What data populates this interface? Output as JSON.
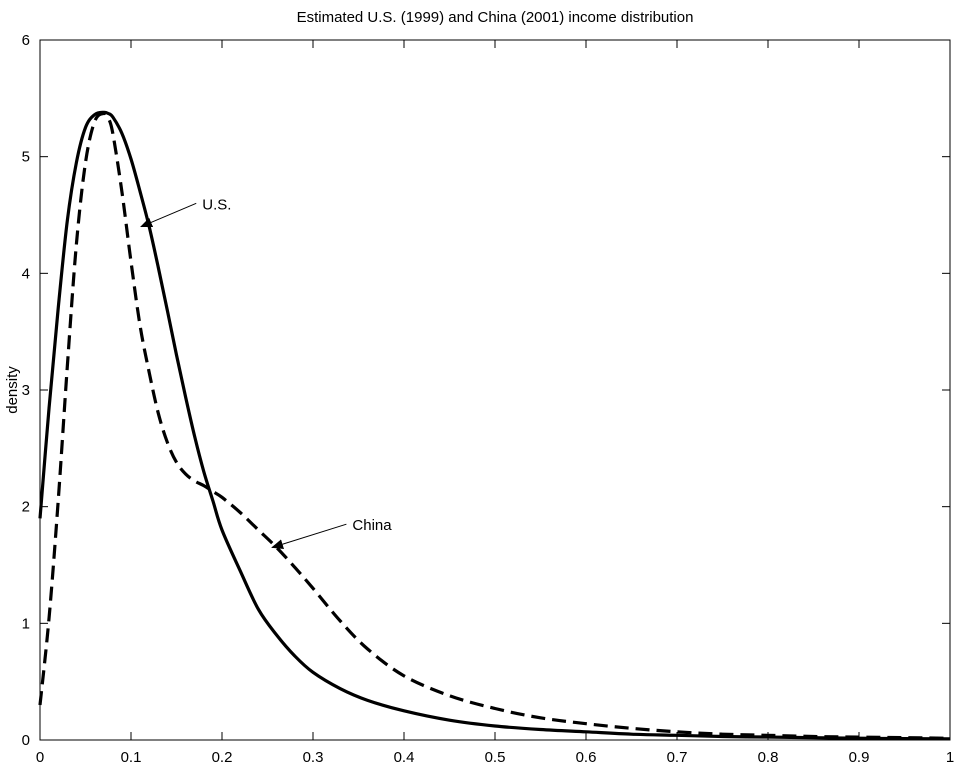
{
  "chart_data": {
    "type": "line",
    "title": "Estimated U.S. (1999) and China (2001) income distribution",
    "xlabel": "",
    "ylabel": "density",
    "xlim": [
      0,
      1
    ],
    "ylim": [
      0,
      6
    ],
    "xticks": [
      0,
      0.1,
      0.2,
      0.3,
      0.4,
      0.5,
      0.6,
      0.7,
      0.8,
      0.9,
      1
    ],
    "xtick_labels": [
      "0",
      "0.1",
      "0.2",
      "0.3",
      "0.4",
      "0.5",
      "0.6",
      "0.7",
      "0.8",
      "0.9",
      "1"
    ],
    "yticks": [
      0,
      1,
      2,
      3,
      4,
      5,
      6
    ],
    "ytick_labels": [
      "0",
      "1",
      "2",
      "3",
      "4",
      "5",
      "6"
    ],
    "grid": false,
    "series": [
      {
        "name": "U.S.",
        "style": "solid",
        "color": "#000000",
        "x": [
          0,
          0.01,
          0.02,
          0.03,
          0.04,
          0.05,
          0.06,
          0.07,
          0.075,
          0.08,
          0.09,
          0.1,
          0.11,
          0.12,
          0.13,
          0.14,
          0.15,
          0.16,
          0.17,
          0.18,
          0.19,
          0.2,
          0.22,
          0.24,
          0.26,
          0.28,
          0.3,
          0.33,
          0.36,
          0.4,
          0.45,
          0.5,
          0.55,
          0.6,
          0.65,
          0.7,
          0.75,
          0.8,
          0.85,
          0.9,
          0.95,
          1.0
        ],
        "y": [
          1.9,
          2.85,
          3.7,
          4.45,
          4.95,
          5.25,
          5.36,
          5.38,
          5.37,
          5.34,
          5.2,
          4.98,
          4.7,
          4.4,
          4.05,
          3.68,
          3.3,
          2.94,
          2.6,
          2.3,
          2.05,
          1.8,
          1.45,
          1.12,
          0.9,
          0.72,
          0.58,
          0.44,
          0.34,
          0.25,
          0.17,
          0.12,
          0.09,
          0.07,
          0.05,
          0.04,
          0.03,
          0.025,
          0.02,
          0.015,
          0.012,
          0.01
        ]
      },
      {
        "name": "China",
        "style": "dashed",
        "color": "#000000",
        "x": [
          0,
          0.01,
          0.02,
          0.03,
          0.04,
          0.05,
          0.06,
          0.07,
          0.075,
          0.08,
          0.09,
          0.1,
          0.11,
          0.12,
          0.13,
          0.14,
          0.15,
          0.16,
          0.17,
          0.18,
          0.19,
          0.2,
          0.22,
          0.24,
          0.26,
          0.28,
          0.3,
          0.33,
          0.36,
          0.4,
          0.45,
          0.5,
          0.55,
          0.6,
          0.65,
          0.7,
          0.75,
          0.8,
          0.85,
          0.9,
          0.95,
          1.0
        ],
        "y": [
          0.3,
          1.05,
          2.05,
          3.2,
          4.25,
          4.95,
          5.3,
          5.37,
          5.33,
          5.2,
          4.7,
          4.1,
          3.55,
          3.15,
          2.8,
          2.55,
          2.38,
          2.28,
          2.22,
          2.18,
          2.13,
          2.08,
          1.95,
          1.8,
          1.65,
          1.48,
          1.3,
          1.02,
          0.78,
          0.55,
          0.38,
          0.27,
          0.19,
          0.14,
          0.1,
          0.07,
          0.05,
          0.04,
          0.03,
          0.025,
          0.02,
          0.015
        ]
      }
    ],
    "annotations": [
      {
        "text": "U.S.",
        "target": [
          0.111,
          4.4
        ],
        "text_at": [
          0.175,
          4.6
        ]
      },
      {
        "text": "China",
        "target": [
          0.255,
          1.65
        ],
        "text_at": [
          0.34,
          1.85
        ]
      }
    ]
  }
}
